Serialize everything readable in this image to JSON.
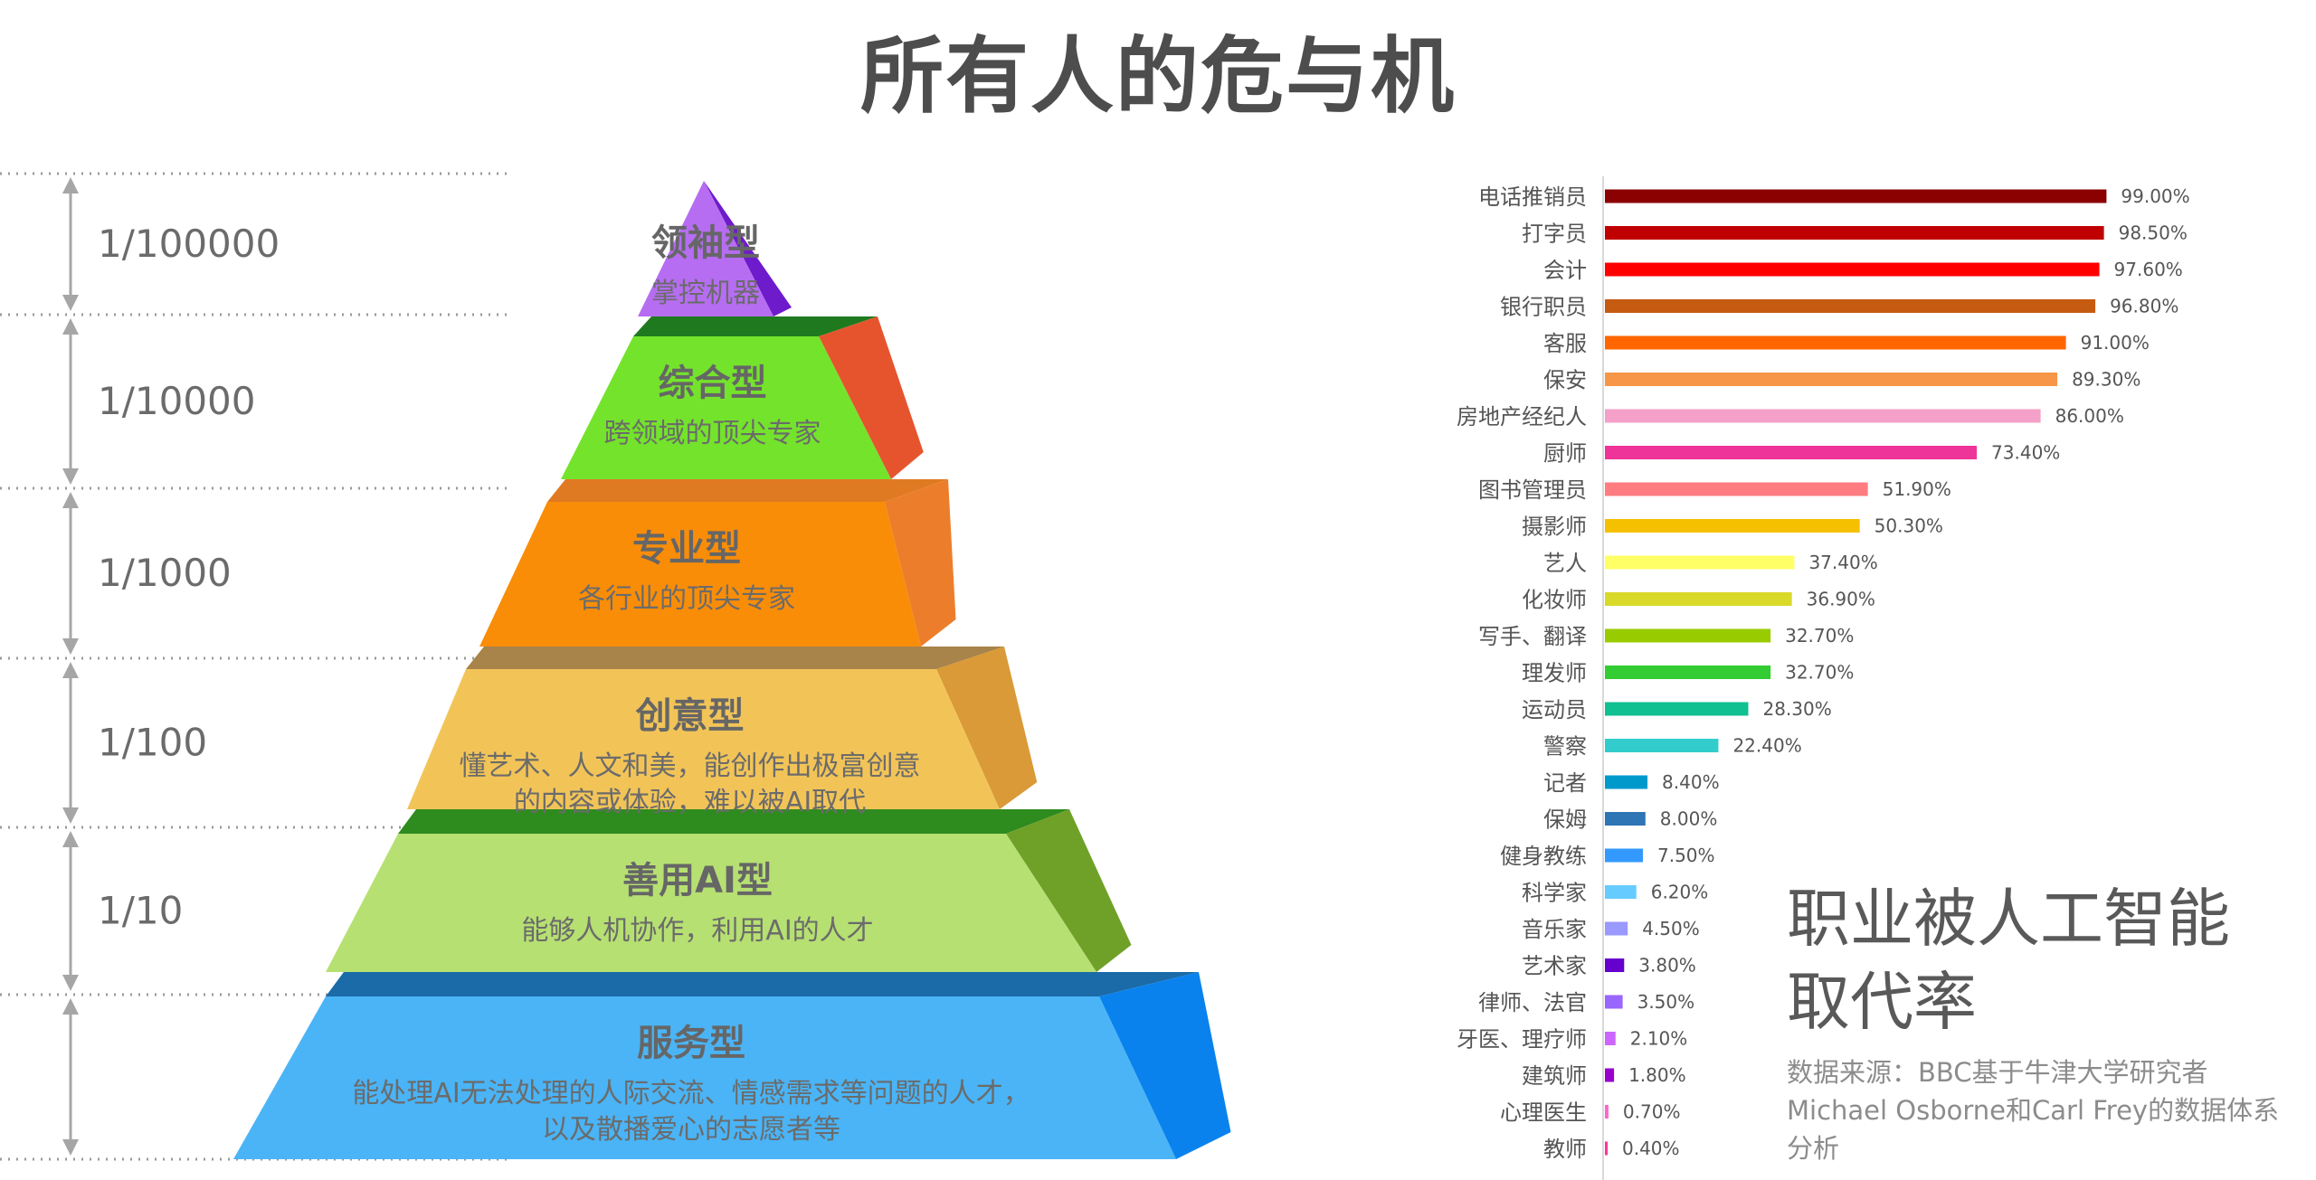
{
  "title": "所有人的危与机",
  "pyramid": {
    "levels": [
      {
        "ratio": "1/100000",
        "name": "领袖型",
        "desc_lines": [
          "掌控机器"
        ],
        "front": "#B66DF2",
        "side": "#6D1BCB",
        "top": "#9C47E8"
      },
      {
        "ratio": "1/10000",
        "name": "综合型",
        "desc_lines": [
          "跨领域的顶尖专家"
        ],
        "front": "#74E32C",
        "side": "#E6542E",
        "top": "#1F7A1F"
      },
      {
        "ratio": "1/1000",
        "name": "专业型",
        "desc_lines": [
          "各行业的顶尖专家"
        ],
        "front": "#F98D08",
        "side": "#EC7E2B",
        "top": "#E07A22"
      },
      {
        "ratio": "1/100",
        "name": "创意型",
        "desc_lines": [
          "懂艺术、人文和美，能创作出极富创意",
          "的内容或体验，难以被AI取代"
        ],
        "front": "#F2C458",
        "side": "#D99A37",
        "top": "#A8834A"
      },
      {
        "ratio": "1/10",
        "name": "善用AI型",
        "desc_lines": [
          "能够人机协作，利用AI的人才"
        ],
        "front": "#B6E072",
        "side": "#6FA128",
        "top": "#2E8B1E"
      },
      {
        "ratio": "",
        "name": "服务型",
        "desc_lines": [
          "能处理AI无法处理的人际交流、情感需求等问题的人才，",
          "以及散播爱心的志愿者等"
        ],
        "front": "#4AB4F6",
        "side": "#0A82EE",
        "top": "#1A6BA8"
      }
    ]
  },
  "chart_data": {
    "type": "bar",
    "orientation": "horizontal",
    "categories": [
      "电话推销员",
      "打字员",
      "会计",
      "银行职员",
      "客服",
      "保安",
      "房地产经纪人",
      "厨师",
      "图书管理员",
      "摄影师",
      "艺人",
      "化妆师",
      "写手、翻译",
      "理发师",
      "运动员",
      "警察",
      "记者",
      "保姆",
      "健身教练",
      "科学家",
      "音乐家",
      "艺术家",
      "律师、法官",
      "牙医、理疗师",
      "建筑师",
      "心理医生",
      "教师"
    ],
    "values": [
      99.0,
      98.5,
      97.6,
      96.8,
      91.0,
      89.3,
      86.0,
      73.4,
      51.9,
      50.3,
      37.4,
      36.9,
      32.7,
      32.7,
      28.3,
      22.4,
      8.4,
      8.0,
      7.5,
      6.2,
      4.5,
      3.8,
      3.5,
      2.1,
      1.8,
      0.7,
      0.4
    ],
    "value_labels": [
      "99.00%",
      "98.50%",
      "97.60%",
      "96.80%",
      "91.00%",
      "89.30%",
      "86.00%",
      "73.40%",
      "51.90%",
      "50.30%",
      "37.40%",
      "36.90%",
      "32.70%",
      "32.70%",
      "28.30%",
      "22.40%",
      "8.40%",
      "8.00%",
      "7.50%",
      "6.20%",
      "4.50%",
      "3.80%",
      "3.50%",
      "2.10%",
      "1.80%",
      "0.70%",
      "0.40%"
    ],
    "colors": [
      "#8B0000",
      "#C00000",
      "#FF0000",
      "#C55A11",
      "#FF6600",
      "#F79646",
      "#F4A0C8",
      "#EE3399",
      "#FF7C80",
      "#F5C000",
      "#FFFF66",
      "#D9D92A",
      "#99CC00",
      "#33CC33",
      "#10C090",
      "#33CCCC",
      "#0099CC",
      "#2E75B6",
      "#3399FF",
      "#66CCFF",
      "#9999FF",
      "#6600CC",
      "#9966FF",
      "#CC66FF",
      "#9900CC",
      "#FF66CC",
      "#FF3399"
    ],
    "xlim": [
      0,
      100
    ],
    "grid": false,
    "legend": false,
    "subtitle": "职业被人工智能取代率",
    "source_note": "数据来源：BBC基于牛津大学研究者Michael Osborne和Carl Frey的数据体系分析"
  }
}
